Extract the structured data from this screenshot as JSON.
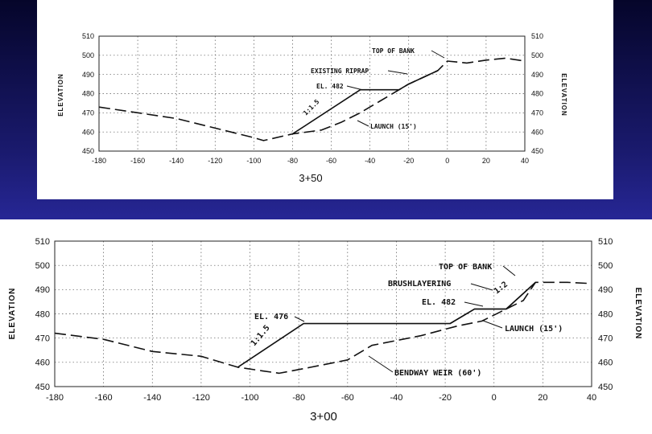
{
  "colors": {
    "background_top": "#05052a",
    "background_mid": "#2a2aa0",
    "panel": "#ffffff",
    "ink": "#111111"
  },
  "chart_data": [
    {
      "type": "line",
      "station_label": "3+50",
      "ylabel_left": "ELEVATION",
      "ylabel_right": "ELEVATION",
      "xlim": [
        -180,
        40
      ],
      "ylim": [
        450,
        510
      ],
      "xticks": [
        -180,
        -160,
        -140,
        -120,
        -100,
        -80,
        -60,
        -40,
        -20,
        0,
        20,
        40
      ],
      "yticks": [
        450,
        460,
        470,
        480,
        490,
        500,
        510
      ],
      "grid": true,
      "series": [
        {
          "style": "dashed",
          "x": [
            -180,
            -160,
            -140,
            -120,
            -100,
            -95,
            -80,
            -65,
            -55,
            -45,
            -35,
            -20,
            -5,
            0,
            10,
            20,
            30,
            40
          ],
          "y": [
            473,
            470,
            467,
            462,
            457,
            455.5,
            459,
            461,
            465,
            470,
            476,
            485,
            492,
            497,
            496,
            497.5,
            498.5,
            497
          ]
        },
        {
          "style": "solid",
          "x": [
            -80,
            -45,
            -30,
            -25,
            -20,
            -5
          ],
          "y": [
            459,
            482,
            482,
            482,
            485,
            492
          ]
        }
      ],
      "annotations": [
        {
          "text": "TOP OF BANK"
        },
        {
          "text": "EXISTING RIPRAP"
        },
        {
          "text": "EL. 482"
        },
        {
          "text": "1:1.5"
        },
        {
          "text": "LAUNCH (15')"
        }
      ]
    },
    {
      "type": "line",
      "station_label": "3+00",
      "ylabel_left": "ELEVATION",
      "ylabel_right": "ELEVATION",
      "xlim": [
        -180,
        40
      ],
      "ylim": [
        450,
        510
      ],
      "xticks": [
        -180,
        -160,
        -140,
        -120,
        -100,
        -80,
        -60,
        -40,
        -20,
        0,
        20,
        40
      ],
      "yticks": [
        450,
        460,
        470,
        480,
        490,
        500,
        510
      ],
      "grid": true,
      "series": [
        {
          "style": "dashed",
          "x": [
            -180,
            -160,
            -140,
            -120,
            -105,
            -95,
            -88,
            -75,
            -60,
            -50,
            -30,
            -15,
            -5,
            5,
            12,
            17,
            30,
            40
          ],
          "y": [
            472,
            469.5,
            464.5,
            462.5,
            458,
            456.5,
            455.5,
            458,
            461,
            467,
            471,
            475,
            477,
            482,
            485.5,
            493,
            493,
            492.5
          ]
        },
        {
          "style": "solid",
          "x": [
            -105,
            -78,
            -18,
            -8,
            5,
            17
          ],
          "y": [
            458,
            476,
            476,
            482,
            482,
            493
          ]
        },
        {
          "style": "solid",
          "x": [
            -18,
            -8,
            5,
            17
          ],
          "y": [
            476,
            482,
            482,
            493
          ]
        }
      ],
      "annotations": [
        {
          "text": "TOP OF BANK"
        },
        {
          "text": "BRUSHLAYERING"
        },
        {
          "text": "1:2"
        },
        {
          "text": "EL. 482"
        },
        {
          "text": "EL. 476"
        },
        {
          "text": "1:1.5"
        },
        {
          "text": "LAUNCH (15')"
        },
        {
          "text": "BENDWAY WEIR (60')"
        }
      ]
    }
  ]
}
